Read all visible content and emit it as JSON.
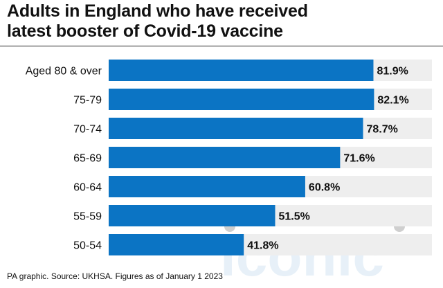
{
  "title": {
    "line1": "Adults in England who have received",
    "line2": "latest booster of Covid-19 vaccine"
  },
  "source": "PA graphic. Source: UKHSA. Figures as of January 1 2023",
  "colors": {
    "bar": "#0b74c4",
    "track": "#eeeeee",
    "watermark": "#e3eef7"
  },
  "chart_data": {
    "type": "bar",
    "orientation": "horizontal",
    "categories": [
      "Aged 80 & over",
      "75-79",
      "70-74",
      "65-69",
      "60-64",
      "55-59",
      "50-54"
    ],
    "values": [
      81.9,
      82.1,
      78.7,
      71.6,
      60.8,
      51.5,
      41.8
    ],
    "value_labels": [
      "81.9%",
      "82.1%",
      "78.7%",
      "71.6%",
      "60.8%",
      "51.5%",
      "41.8%"
    ],
    "xlim": [
      0,
      100
    ],
    "unit": "%",
    "grid": false
  }
}
